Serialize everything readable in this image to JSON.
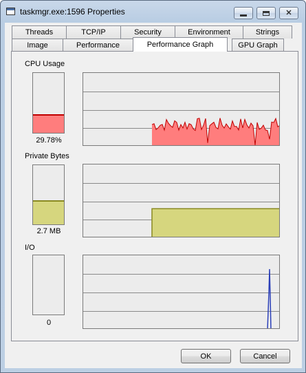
{
  "window": {
    "title": "taskmgr.exe:1596 Properties"
  },
  "tabs_back": [
    "Threads",
    "TCP/IP",
    "Security",
    "Environment",
    "Strings"
  ],
  "tabs_front": [
    "Image",
    "Performance",
    "Performance Graph",
    "GPU Graph"
  ],
  "active_tab": "Performance Graph",
  "sections": {
    "cpu": {
      "label": "CPU Usage",
      "value": "29.78%",
      "level": 0.3,
      "color": "#ff7d7d",
      "line_color": "#c00000"
    },
    "private_bytes": {
      "label": "Private Bytes",
      "value": "2.7 MB",
      "level": 0.4,
      "color": "#d6d67e",
      "line_color": "#8a8a20"
    },
    "io": {
      "label": "I/O",
      "value": "0",
      "level": 0.0,
      "color": "#2b3fb8"
    }
  },
  "buttons": {
    "ok": "OK",
    "cancel": "Cancel"
  }
}
